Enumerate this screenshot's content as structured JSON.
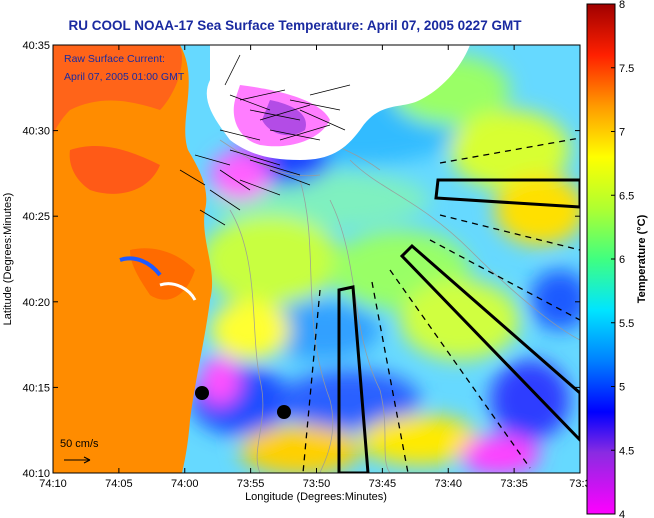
{
  "title": "RU COOL  NOAA-17  Sea Surface Temperature:  April 07, 2005 0227 GMT",
  "overlay": {
    "line1": "Raw Surface Current:",
    "line2": "April 07, 2005 01:00 GMT",
    "scale_label": "50 cm/s"
  },
  "map": {
    "xlabel": "Longitude (Degrees:Minutes)",
    "ylabel": "Latitude (Degrees:Minutes)",
    "x_ticks": [
      "74:10",
      "74:05",
      "74:00",
      "73:55",
      "73:50",
      "73:45",
      "73:40",
      "73:35",
      "73:3"
    ],
    "y_ticks": [
      "40:35",
      "40:30",
      "40:25",
      "40:20",
      "40:15",
      "40:10"
    ],
    "land_color": "#ff8c00"
  },
  "colorbar": {
    "label": "Temperature (°C)",
    "ticks": [
      "8",
      "7.5",
      "7",
      "6.5",
      "6",
      "5.5",
      "5",
      "4.5",
      "4"
    ],
    "range": [
      4,
      8
    ]
  }
}
